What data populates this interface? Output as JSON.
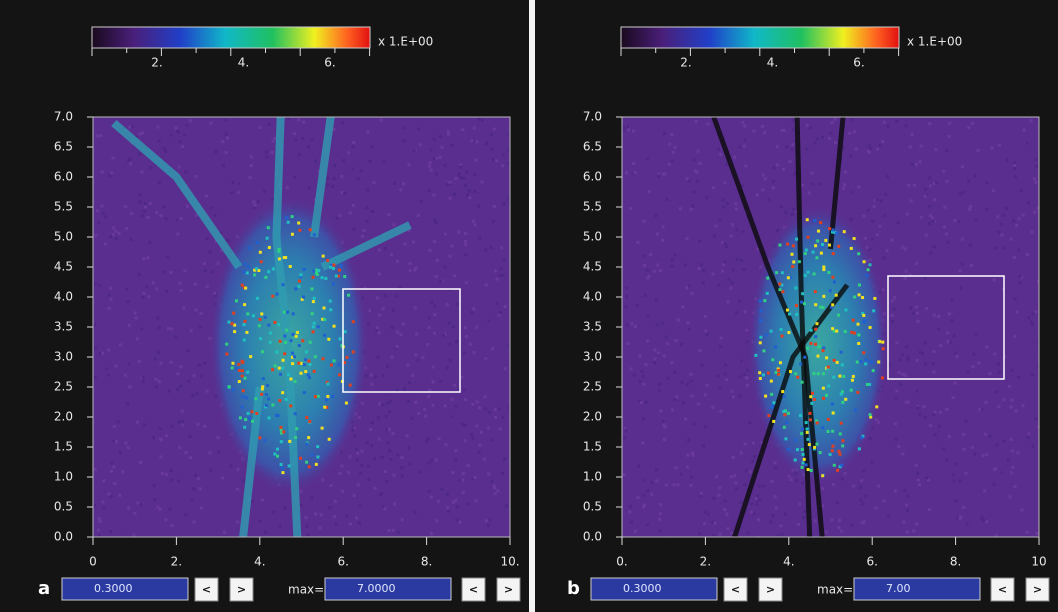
{
  "panels": [
    {
      "label": "a",
      "colorbar": {
        "ticks": [
          "2.",
          "4.",
          "6."
        ],
        "unit": "x 1.E+00"
      },
      "y_ticks": [
        "7.0",
        "6.5",
        "6.0",
        "5.5",
        "5.0",
        "4.5",
        "4.0",
        "3.5",
        "3.0",
        "2.5",
        "2.0",
        "1.5",
        "1.0",
        "0.5",
        "0.0"
      ],
      "x_ticks": [
        "0",
        "2.",
        "4.",
        "6.",
        "8.",
        "10."
      ],
      "min_value": "0.3000",
      "max_label": "max=",
      "max_value": "7.0000",
      "buttons": [
        "<",
        ">",
        "<",
        ">"
      ]
    },
    {
      "label": "b",
      "colorbar": {
        "ticks": [
          "2.",
          "4.",
          "6."
        ],
        "unit": "x 1.E+00"
      },
      "y_ticks": [
        "7.0",
        "6.5",
        "6.0",
        "5.5",
        "5.0",
        "4.5",
        "4.0",
        "3.5",
        "3.0",
        "2.5",
        "2.0",
        "1.5",
        "1.0",
        "0.5",
        "0.0"
      ],
      "x_ticks": [
        "0.",
        "2.",
        "4.",
        "6.",
        "8.",
        "10"
      ],
      "min_value": "0.3000",
      "max_label": "max=",
      "max_value": "7.00",
      "buttons": [
        "<",
        ">",
        "<",
        ">"
      ]
    }
  ]
}
